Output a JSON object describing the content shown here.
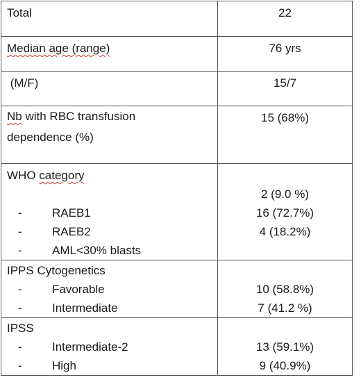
{
  "rows": [
    {
      "label": "Total",
      "value": "22"
    },
    {
      "label": "Median age (range)",
      "value": "76 yrs"
    },
    {
      "label": " (M/F)",
      "value": "15/7"
    },
    {
      "label_parts": [
        "Nb",
        " with RBC transfusion",
        "dependence (%)"
      ],
      "value": "15 (68%)"
    },
    {
      "label_parts": [
        "WHO ",
        "category"
      ],
      "items": [
        {
          "dash": "-",
          "label": "RAEB1"
        },
        {
          "dash": "-",
          "label": "RAEB2"
        },
        {
          "dash": "-",
          "label": "AML<30% blasts"
        }
      ],
      "values": [
        "2 (9.0 %)",
        "16 (72.7%)",
        "4 (18.2%)"
      ]
    },
    {
      "label": "IPPS Cytogenetics",
      "items": [
        {
          "dash": "-",
          "label": "Favorable"
        },
        {
          "dash": "-",
          "label": "Intermediate"
        }
      ],
      "values": [
        "10 (58.8%)",
        "7 (41.2 %)"
      ]
    },
    {
      "label": "IPSS",
      "items": [
        {
          "dash": "-",
          "label": "Intermediate-2"
        },
        {
          "dash": "-",
          "label": "High"
        }
      ],
      "values": [
        "13 (59.1%)",
        "9 (40.9%)"
      ]
    }
  ]
}
